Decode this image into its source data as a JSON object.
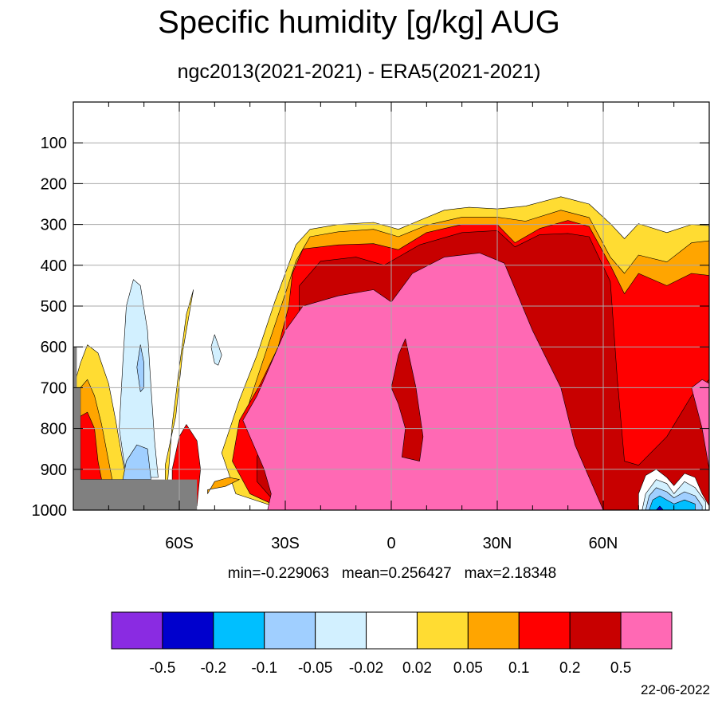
{
  "title": "Specific humidity [g/kg] AUG",
  "subtitle": "ngc2013(2021-2021) - ERA5(2021-2021)",
  "stats": "min=-0.229063   mean=0.256427   max=2.18348",
  "date": "22-06-2022",
  "chart_data": {
    "type": "heatmap",
    "x_axis": {
      "range": [
        -90,
        90
      ],
      "tick_values": [
        -60,
        -30,
        0,
        30,
        60
      ],
      "tick_labels": [
        "60S",
        "30S",
        "0",
        "30N",
        "60N"
      ]
    },
    "y_axis": {
      "range": [
        0,
        1000
      ],
      "inverted": true,
      "tick_values": [
        100,
        200,
        300,
        400,
        500,
        600,
        700,
        800,
        900,
        1000
      ],
      "tick_labels": [
        "100",
        "200",
        "300",
        "400",
        "500",
        "600",
        "700",
        "800",
        "900",
        "1000"
      ]
    },
    "grid": true,
    "colorbar": {
      "colors": [
        "#8a2be2",
        "#0000cd",
        "#00bfff",
        "#a0cfff",
        "#d2f0ff",
        "#ffffff",
        "#ffdc32",
        "#ffa500",
        "#ff0000",
        "#c80000",
        "#ff69b4"
      ],
      "boundary_labels": [
        "-0.5",
        "-0.2",
        "-0.1",
        "-0.05",
        "-0.02",
        "0.02",
        "0.05",
        "0.1",
        "0.2",
        "0.5"
      ]
    },
    "missing_color": "#808080",
    "contours": [
      {
        "level": 0.02,
        "color": "#ffdc32",
        "points": [
          [
            -30,
            1000
          ],
          [
            -44,
            960
          ],
          [
            -48,
            860
          ],
          [
            -43,
            730
          ],
          [
            -38,
            620
          ],
          [
            -33,
            490
          ],
          [
            -30,
            420
          ],
          [
            -27,
            350
          ],
          [
            -23,
            312
          ],
          [
            -15,
            300
          ],
          [
            -5,
            295
          ],
          [
            2,
            312
          ],
          [
            8,
            290
          ],
          [
            15,
            265
          ],
          [
            22,
            258
          ],
          [
            30,
            262
          ],
          [
            38,
            255
          ],
          [
            48,
            232
          ],
          [
            56,
            250
          ],
          [
            62,
            298
          ],
          [
            66,
            335
          ],
          [
            70,
            298
          ],
          [
            78,
            320
          ],
          [
            85,
            300
          ],
          [
            90,
            303
          ],
          [
            90,
            1000
          ]
        ]
      },
      {
        "level": 0.02,
        "color": "#ffdc32",
        "points": [
          [
            -64,
            1000
          ],
          [
            -64,
            890
          ],
          [
            -61,
            770
          ],
          [
            -59,
            610
          ],
          [
            -57,
            510
          ],
          [
            -56,
            460
          ],
          [
            -58,
            520
          ],
          [
            -60,
            650
          ],
          [
            -62,
            790
          ],
          [
            -63,
            900
          ]
        ]
      },
      {
        "level": 0.02,
        "color": "#ffdc32",
        "points": [
          [
            -90,
            925
          ],
          [
            -90,
            700
          ],
          [
            -88,
            640
          ],
          [
            -86,
            595
          ],
          [
            -83,
            615
          ],
          [
            -80,
            690
          ],
          [
            -78,
            780
          ],
          [
            -76,
            880
          ],
          [
            -75,
            925
          ]
        ]
      },
      {
        "level": 0.05,
        "color": "#ffa500",
        "points": [
          [
            -30,
            1000
          ],
          [
            -40,
            960
          ],
          [
            -44,
            870
          ],
          [
            -40,
            730
          ],
          [
            -35,
            600
          ],
          [
            -30,
            470
          ],
          [
            -27,
            390
          ],
          [
            -23,
            330
          ],
          [
            -15,
            318
          ],
          [
            -5,
            312
          ],
          [
            2,
            330
          ],
          [
            10,
            302
          ],
          [
            20,
            282
          ],
          [
            30,
            282
          ],
          [
            38,
            292
          ],
          [
            48,
            265
          ],
          [
            56,
            283
          ],
          [
            62,
            380
          ],
          [
            66,
            420
          ],
          [
            70,
            375
          ],
          [
            78,
            392
          ],
          [
            85,
            345
          ],
          [
            90,
            340
          ],
          [
            90,
            1000
          ]
        ]
      },
      {
        "level": 0.05,
        "color": "#ffa500",
        "points": [
          [
            -88,
            925
          ],
          [
            -88,
            700
          ],
          [
            -86,
            680
          ],
          [
            -84,
            720
          ],
          [
            -82,
            790
          ],
          [
            -80,
            880
          ],
          [
            -79,
            925
          ]
        ]
      },
      {
        "level": 0.05,
        "color": "#ffa500",
        "points": [
          [
            -52,
            960
          ],
          [
            -50,
            930
          ],
          [
            -46,
            920
          ],
          [
            -43,
            925
          ],
          [
            -47,
            942
          ],
          [
            -52,
            950
          ]
        ]
      },
      {
        "level": 0.1,
        "color": "#ff0000",
        "points": [
          [
            -30,
            1000
          ],
          [
            -40,
            960
          ],
          [
            -45,
            880
          ],
          [
            -43,
            780
          ],
          [
            -37,
            690
          ],
          [
            -32,
            600
          ],
          [
            -29,
            500
          ],
          [
            -28,
            420
          ],
          [
            -25,
            360
          ],
          [
            -15,
            350
          ],
          [
            -5,
            347
          ],
          [
            2,
            362
          ],
          [
            10,
            320
          ],
          [
            20,
            300
          ],
          [
            30,
            300
          ],
          [
            35,
            345
          ],
          [
            42,
            310
          ],
          [
            50,
            290
          ],
          [
            56,
            305
          ],
          [
            62,
            400
          ],
          [
            66,
            470
          ],
          [
            70,
            420
          ],
          [
            78,
            450
          ],
          [
            85,
            420
          ],
          [
            90,
            425
          ],
          [
            90,
            1000
          ]
        ]
      },
      {
        "level": 0.1,
        "color": "#ff0000",
        "points": [
          [
            -88,
            925
          ],
          [
            -88,
            770
          ],
          [
            -86,
            760
          ],
          [
            -84,
            800
          ],
          [
            -83,
            880
          ],
          [
            -82,
            925
          ]
        ]
      },
      {
        "level": 0.1,
        "color": "#ff0000",
        "points": [
          [
            -62,
            1000
          ],
          [
            -62,
            900
          ],
          [
            -60,
            820
          ],
          [
            -58,
            790
          ],
          [
            -55,
            830
          ],
          [
            -54,
            900
          ],
          [
            -55,
            990
          ]
        ]
      },
      {
        "level": 0.2,
        "color": "#c80000",
        "points": [
          [
            -26,
            1000
          ],
          [
            -34,
            970
          ],
          [
            -38,
            930
          ],
          [
            -38,
            870
          ],
          [
            -32,
            740
          ],
          [
            -28,
            640
          ],
          [
            -26,
            530
          ],
          [
            -26,
            450
          ],
          [
            -20,
            390
          ],
          [
            -10,
            380
          ],
          [
            -2,
            400
          ],
          [
            8,
            350
          ],
          [
            20,
            320
          ],
          [
            30,
            315
          ],
          [
            35,
            355
          ],
          [
            42,
            325
          ],
          [
            50,
            322
          ],
          [
            56,
            330
          ],
          [
            62,
            440
          ],
          [
            64,
            680
          ],
          [
            66,
            880
          ],
          [
            70,
            890
          ],
          [
            78,
            820
          ],
          [
            85,
            720
          ],
          [
            90,
            680
          ],
          [
            90,
            1000
          ]
        ]
      },
      {
        "level": 0.2,
        "color": "#c80000",
        "points": [
          [
            -22,
            925
          ],
          [
            -18,
            928
          ],
          [
            -15,
            923
          ],
          [
            -12,
            930
          ],
          [
            -9,
            925
          ],
          [
            -12,
            935
          ],
          [
            -18,
            935
          ]
        ]
      },
      {
        "level": 0.5,
        "color": "#ff69b4",
        "points": [
          [
            -35,
            1000
          ],
          [
            -34,
            960
          ],
          [
            -36,
            900
          ],
          [
            -42,
            780
          ],
          [
            -38,
            720
          ],
          [
            -33,
            620
          ],
          [
            -30,
            560
          ],
          [
            -25,
            500
          ],
          [
            -15,
            475
          ],
          [
            -5,
            460
          ],
          [
            0,
            490
          ],
          [
            6,
            420
          ],
          [
            15,
            380
          ],
          [
            25,
            370
          ],
          [
            32,
            395
          ],
          [
            40,
            560
          ],
          [
            48,
            700
          ],
          [
            52,
            840
          ],
          [
            60,
            1000
          ]
        ]
      },
      {
        "level": 0.2,
        "color": "#c80000",
        "points": [
          [
            3,
            870
          ],
          [
            8,
            880
          ],
          [
            9,
            820
          ],
          [
            7,
            700
          ],
          [
            4,
            580
          ],
          [
            2,
            620
          ],
          [
            0,
            700
          ],
          [
            2,
            740
          ],
          [
            4,
            800
          ]
        ]
      },
      {
        "level": 0.5,
        "color": "#ff69b4",
        "points": [
          [
            90,
            900
          ],
          [
            88,
            800
          ],
          [
            85,
            700
          ],
          [
            88,
            680
          ],
          [
            90,
            690
          ]
        ]
      },
      {
        "level": -0.02,
        "color": "#d2f0ff",
        "points": [
          [
            -75,
            920
          ],
          [
            -77,
            800
          ],
          [
            -76,
            640
          ],
          [
            -75,
            500
          ],
          [
            -73,
            435
          ],
          [
            -71,
            450
          ],
          [
            -69,
            560
          ],
          [
            -68,
            700
          ],
          [
            -67,
            830
          ],
          [
            -66,
            920
          ]
        ]
      },
      {
        "level": -0.02,
        "color": "#d2f0ff",
        "points": [
          [
            -50,
            640
          ],
          [
            -51,
            600
          ],
          [
            -50,
            570
          ],
          [
            -48,
            620
          ],
          [
            -49,
            645
          ]
        ]
      },
      {
        "level": -0.05,
        "color": "#a0cfff",
        "points": [
          [
            -76,
            925
          ],
          [
            -75,
            880
          ],
          [
            -72,
            840
          ],
          [
            -69,
            850
          ],
          [
            -68,
            925
          ]
        ]
      },
      {
        "level": -0.05,
        "color": "#a0cfff",
        "points": [
          [
            -71,
            710
          ],
          [
            -72,
            650
          ],
          [
            -71,
            595
          ],
          [
            -70,
            640
          ],
          [
            -70,
            700
          ]
        ]
      },
      {
        "level": 0.02,
        "color": "#ffffff",
        "points": [
          [
            70,
            1000
          ],
          [
            70,
            960
          ],
          [
            72,
            915
          ],
          [
            75,
            900
          ],
          [
            78,
            920
          ],
          [
            80,
            940
          ],
          [
            83,
            910
          ],
          [
            86,
            920
          ],
          [
            88,
            960
          ],
          [
            90,
            990
          ],
          [
            90,
            1000
          ]
        ]
      },
      {
        "level": -0.02,
        "color": "#d2f0ff",
        "points": [
          [
            71,
            1000
          ],
          [
            72,
            960
          ],
          [
            75,
            925
          ],
          [
            78,
            935
          ],
          [
            80,
            960
          ],
          [
            83,
            930
          ],
          [
            86,
            945
          ],
          [
            89,
            980
          ],
          [
            89,
            1000
          ]
        ]
      },
      {
        "level": -0.05,
        "color": "#a0cfff",
        "points": [
          [
            72,
            1000
          ],
          [
            73,
            965
          ],
          [
            75,
            945
          ],
          [
            78,
            955
          ],
          [
            80,
            970
          ],
          [
            83,
            955
          ],
          [
            86,
            965
          ],
          [
            88,
            990
          ],
          [
            88,
            1000
          ]
        ]
      },
      {
        "level": -0.1,
        "color": "#00bfff",
        "points": [
          [
            73,
            1000
          ],
          [
            74,
            975
          ],
          [
            76,
            965
          ],
          [
            78,
            975
          ],
          [
            80,
            985
          ],
          [
            83,
            975
          ],
          [
            86,
            985
          ],
          [
            86,
            1000
          ]
        ]
      },
      {
        "level": -0.2,
        "color": "#0000cd",
        "points": [
          [
            75,
            1000
          ],
          [
            76,
            990
          ],
          [
            77,
            1000
          ]
        ]
      }
    ],
    "missing_regions": [
      {
        "points": [
          [
            -90,
            1000
          ],
          [
            -90,
            600
          ],
          [
            -89,
            600
          ],
          [
            -89,
            700
          ],
          [
            -88,
            700
          ],
          [
            -88,
            925
          ],
          [
            -55,
            925
          ],
          [
            -55,
            1000
          ]
        ]
      }
    ]
  }
}
